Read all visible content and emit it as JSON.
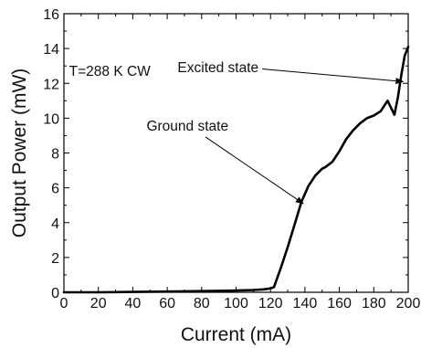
{
  "chart_data": {
    "type": "line",
    "title": "",
    "xlabel": "Current (mA)",
    "ylabel": "Output Power (mW)",
    "xlim": [
      0,
      200
    ],
    "ylim": [
      0,
      16
    ],
    "x_ticks": [
      0,
      20,
      40,
      60,
      80,
      100,
      120,
      140,
      160,
      180,
      200
    ],
    "y_ticks": [
      0,
      2,
      4,
      6,
      8,
      10,
      12,
      14,
      16
    ],
    "grid": false,
    "legend": "none",
    "line_color": "#000000",
    "series": [
      {
        "x": [
          0,
          20,
          40,
          60,
          80,
          100,
          110,
          116,
          120,
          122,
          126,
          130,
          134,
          138,
          142,
          146,
          150,
          152,
          156,
          160,
          164,
          168,
          172,
          176,
          180,
          184,
          188,
          192,
          194,
          196,
          198,
          200
        ],
        "y": [
          0.0,
          0.0,
          0.02,
          0.04,
          0.07,
          0.1,
          0.13,
          0.17,
          0.22,
          0.3,
          1.4,
          2.6,
          3.9,
          5.2,
          6.1,
          6.7,
          7.1,
          7.2,
          7.5,
          8.1,
          8.8,
          9.3,
          9.7,
          10.0,
          10.15,
          10.4,
          11.0,
          10.2,
          11.2,
          12.5,
          13.6,
          14.1
        ]
      }
    ],
    "annotations": [
      {
        "text": "T=288 K CW",
        "x": 3,
        "y": 12.7
      },
      {
        "text": "Excited state",
        "x": 66,
        "y": 12.9,
        "arrow_to": [
          197,
          12.1
        ]
      },
      {
        "text": "Ground state",
        "x": 48,
        "y": 9.55,
        "arrow_to": [
          139,
          5.1
        ]
      }
    ]
  }
}
